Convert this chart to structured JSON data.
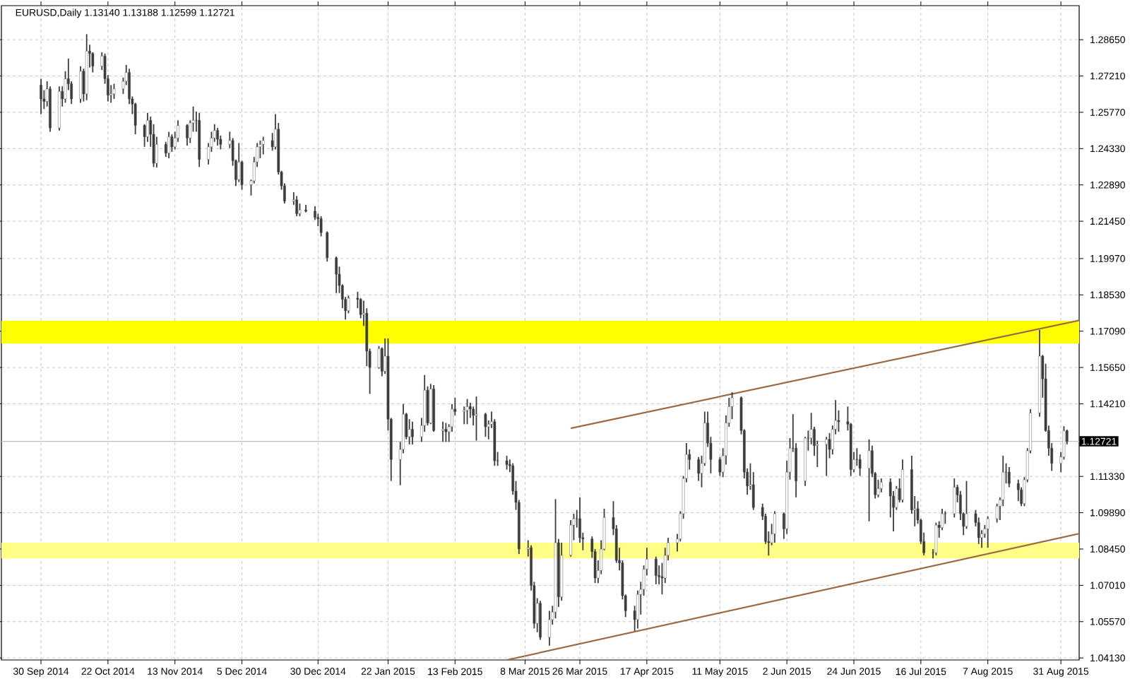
{
  "chart_data": {
    "type": "candlestick",
    "title": "EURUSD,Daily  1.13140 1.13188 1.12599 1.12721",
    "color": "#3c3c3c",
    "x": [
      "2014-09-30",
      "2014-10-01",
      "2014-10-02",
      "2014-10-03",
      "2014-10-06",
      "2014-10-07",
      "2014-10-08",
      "2014-10-09",
      "2014-10-10",
      "2014-10-13",
      "2014-10-14",
      "2014-10-15",
      "2014-10-16",
      "2014-10-17",
      "2014-10-20",
      "2014-10-21",
      "2014-10-22",
      "2014-10-23",
      "2014-10-24",
      "2014-10-27",
      "2014-10-28",
      "2014-10-29",
      "2014-10-30",
      "2014-10-31",
      "2014-11-03",
      "2014-11-04",
      "2014-11-05",
      "2014-11-06",
      "2014-11-07",
      "2014-11-10",
      "2014-11-11",
      "2014-11-12",
      "2014-11-13",
      "2014-11-14",
      "2014-11-17",
      "2014-11-18",
      "2014-11-19",
      "2014-11-20",
      "2014-11-21",
      "2014-11-24",
      "2014-11-25",
      "2014-11-26",
      "2014-11-27",
      "2014-11-28",
      "2014-12-01",
      "2014-12-02",
      "2014-12-03",
      "2014-12-04",
      "2014-12-05",
      "2014-12-08",
      "2014-12-09",
      "2014-12-10",
      "2014-12-11",
      "2014-12-12",
      "2014-12-15",
      "2014-12-16",
      "2014-12-17",
      "2014-12-18",
      "2014-12-19",
      "2014-12-22",
      "2014-12-23",
      "2014-12-24",
      "2014-12-26",
      "2014-12-29",
      "2014-12-30",
      "2014-12-31",
      "2015-01-02",
      "2015-01-05",
      "2015-01-06",
      "2015-01-07",
      "2015-01-08",
      "2015-01-09",
      "2015-01-12",
      "2015-01-13",
      "2015-01-14",
      "2015-01-15",
      "2015-01-16",
      "2015-01-19",
      "2015-01-20",
      "2015-01-21",
      "2015-01-22",
      "2015-01-23",
      "2015-01-26",
      "2015-01-27",
      "2015-01-28",
      "2015-01-29",
      "2015-01-30",
      "2015-02-02",
      "2015-02-03",
      "2015-02-04",
      "2015-02-05",
      "2015-02-06",
      "2015-02-09",
      "2015-02-10",
      "2015-02-11",
      "2015-02-12",
      "2015-02-13",
      "2015-02-16",
      "2015-02-17",
      "2015-02-18",
      "2015-02-19",
      "2015-02-20",
      "2015-02-23",
      "2015-02-24",
      "2015-02-25",
      "2015-02-26",
      "2015-02-27",
      "2015-03-02",
      "2015-03-03",
      "2015-03-04",
      "2015-03-05",
      "2015-03-06",
      "2015-03-09",
      "2015-03-10",
      "2015-03-11",
      "2015-03-12",
      "2015-03-13",
      "2015-03-16",
      "2015-03-17",
      "2015-03-18",
      "2015-03-19",
      "2015-03-20",
      "2015-03-23",
      "2015-03-24",
      "2015-03-25",
      "2015-03-26",
      "2015-03-27",
      "2015-03-30",
      "2015-03-31",
      "2015-04-01",
      "2015-04-02",
      "2015-04-03",
      "2015-04-06",
      "2015-04-07",
      "2015-04-08",
      "2015-04-09",
      "2015-04-10",
      "2015-04-13",
      "2015-04-14",
      "2015-04-15",
      "2015-04-16",
      "2015-04-17",
      "2015-04-20",
      "2015-04-21",
      "2015-04-22",
      "2015-04-23",
      "2015-04-24",
      "2015-04-27",
      "2015-04-28",
      "2015-04-29",
      "2015-04-30",
      "2015-05-01",
      "2015-05-04",
      "2015-05-05",
      "2015-05-06",
      "2015-05-07",
      "2015-05-08",
      "2015-05-11",
      "2015-05-12",
      "2015-05-13",
      "2015-05-14",
      "2015-05-15",
      "2015-05-18",
      "2015-05-19",
      "2015-05-20",
      "2015-05-21",
      "2015-05-22",
      "2015-05-25",
      "2015-05-26",
      "2015-05-27",
      "2015-05-28",
      "2015-05-29",
      "2015-06-01",
      "2015-06-02",
      "2015-06-03",
      "2015-06-04",
      "2015-06-05",
      "2015-06-08",
      "2015-06-09",
      "2015-06-10",
      "2015-06-11",
      "2015-06-12",
      "2015-06-15",
      "2015-06-16",
      "2015-06-17",
      "2015-06-18",
      "2015-06-19",
      "2015-06-22",
      "2015-06-23",
      "2015-06-24",
      "2015-06-25",
      "2015-06-26",
      "2015-06-29",
      "2015-06-30",
      "2015-07-01",
      "2015-07-02",
      "2015-07-03",
      "2015-07-06",
      "2015-07-07",
      "2015-07-08",
      "2015-07-09",
      "2015-07-10",
      "2015-07-13",
      "2015-07-14",
      "2015-07-15",
      "2015-07-16",
      "2015-07-17",
      "2015-07-20",
      "2015-07-21",
      "2015-07-22",
      "2015-07-23",
      "2015-07-24",
      "2015-07-27",
      "2015-07-28",
      "2015-07-29",
      "2015-07-30",
      "2015-07-31",
      "2015-08-03",
      "2015-08-04",
      "2015-08-05",
      "2015-08-06",
      "2015-08-07",
      "2015-08-10",
      "2015-08-11",
      "2015-08-12",
      "2015-08-13",
      "2015-08-14",
      "2015-08-17",
      "2015-08-18",
      "2015-08-19",
      "2015-08-20",
      "2015-08-21",
      "2015-08-24",
      "2015-08-25",
      "2015-08-26",
      "2015-08-27",
      "2015-08-28",
      "2015-08-31",
      "2015-09-01",
      "2015-09-02"
    ],
    "ohlc": [
      [
        1.2685,
        1.271,
        1.257,
        1.263
      ],
      [
        1.263,
        1.2665,
        1.259,
        1.262
      ],
      [
        1.262,
        1.27,
        1.26,
        1.267
      ],
      [
        1.267,
        1.268,
        1.25,
        1.2515
      ],
      [
        1.2515,
        1.268,
        1.2505,
        1.266
      ],
      [
        1.266,
        1.268,
        1.26,
        1.263
      ],
      [
        1.263,
        1.274,
        1.2615,
        1.271
      ],
      [
        1.271,
        1.279,
        1.2665,
        1.269
      ],
      [
        1.269,
        1.27,
        1.261,
        1.263
      ],
      [
        1.263,
        1.276,
        1.2615,
        1.274
      ],
      [
        1.274,
        1.275,
        1.262,
        1.265
      ],
      [
        1.265,
        1.2887,
        1.2625,
        1.282
      ],
      [
        1.282,
        1.2845,
        1.2755,
        1.281
      ],
      [
        1.281,
        1.2815,
        1.2735,
        1.276
      ],
      [
        1.276,
        1.2815,
        1.2745,
        1.28
      ],
      [
        1.28,
        1.281,
        1.269,
        1.271
      ],
      [
        1.271,
        1.2725,
        1.262,
        1.2645
      ],
      [
        1.2645,
        1.2685,
        1.2615,
        1.265
      ],
      [
        1.265,
        1.269,
        1.263,
        1.267
      ],
      [
        1.267,
        1.2715,
        1.265,
        1.27
      ],
      [
        1.27,
        1.2765,
        1.2685,
        1.2735
      ],
      [
        1.2735,
        1.275,
        1.261,
        1.263
      ],
      [
        1.263,
        1.264,
        1.257,
        1.261
      ],
      [
        1.261,
        1.2615,
        1.249,
        1.2525
      ],
      [
        1.2525,
        1.253,
        1.244,
        1.248
      ],
      [
        1.248,
        1.2575,
        1.246,
        1.2545
      ],
      [
        1.2545,
        1.256,
        1.244,
        1.249
      ],
      [
        1.249,
        1.253,
        1.236,
        1.2375
      ],
      [
        1.2375,
        1.248,
        1.2358,
        1.245
      ],
      [
        1.245,
        1.246,
        1.24,
        1.2415
      ],
      [
        1.2415,
        1.25,
        1.2395,
        1.248
      ],
      [
        1.248,
        1.249,
        1.242,
        1.244
      ],
      [
        1.244,
        1.25,
        1.243,
        1.2475
      ],
      [
        1.2475,
        1.2545,
        1.246,
        1.2525
      ],
      [
        1.2525,
        1.253,
        1.2445,
        1.2475
      ],
      [
        1.2475,
        1.2545,
        1.2455,
        1.2535
      ],
      [
        1.2535,
        1.26,
        1.25,
        1.2545
      ],
      [
        1.2545,
        1.258,
        1.25,
        1.2545
      ],
      [
        1.2545,
        1.2575,
        1.236,
        1.239
      ],
      [
        1.239,
        1.2455,
        1.237,
        1.244
      ],
      [
        1.244,
        1.25,
        1.242,
        1.2475
      ],
      [
        1.2475,
        1.253,
        1.246,
        1.2505
      ],
      [
        1.2505,
        1.2515,
        1.2445,
        1.247
      ],
      [
        1.247,
        1.2485,
        1.243,
        1.245
      ],
      [
        1.245,
        1.25,
        1.2435,
        1.2465
      ],
      [
        1.2465,
        1.2475,
        1.2365,
        1.2385
      ],
      [
        1.2385,
        1.239,
        1.2285,
        1.231
      ],
      [
        1.231,
        1.2455,
        1.23,
        1.238
      ],
      [
        1.238,
        1.2385,
        1.227,
        1.229
      ],
      [
        1.229,
        1.231,
        1.2247,
        1.2305
      ],
      [
        1.2305,
        1.24,
        1.2295,
        1.238
      ],
      [
        1.238,
        1.2455,
        1.236,
        1.244
      ],
      [
        1.244,
        1.2465,
        1.2395,
        1.245
      ],
      [
        1.245,
        1.248,
        1.241,
        1.2465
      ],
      [
        1.2465,
        1.2495,
        1.2425,
        1.244
      ],
      [
        1.244,
        1.257,
        1.243,
        1.251
      ],
      [
        1.251,
        1.2535,
        1.233,
        1.234
      ],
      [
        1.234,
        1.2345,
        1.227,
        1.2285
      ],
      [
        1.2285,
        1.2295,
        1.2215,
        1.2225
      ],
      [
        1.2225,
        1.226,
        1.221,
        1.223
      ],
      [
        1.223,
        1.2245,
        1.2165,
        1.2175
      ],
      [
        1.2175,
        1.2215,
        1.2165,
        1.219
      ],
      [
        1.219,
        1.221,
        1.218,
        1.2185
      ],
      [
        1.2185,
        1.2205,
        1.215,
        1.216
      ],
      [
        1.216,
        1.2175,
        1.2125,
        1.2155
      ],
      [
        1.2155,
        1.2165,
        1.2085,
        1.21
      ],
      [
        1.21,
        1.2105,
        1.1985,
        1.2
      ],
      [
        1.2,
        1.2005,
        1.186,
        1.1935
      ],
      [
        1.1935,
        1.1965,
        1.186,
        1.189
      ],
      [
        1.189,
        1.1895,
        1.18,
        1.1835
      ],
      [
        1.1835,
        1.1845,
        1.1755,
        1.179
      ],
      [
        1.179,
        1.185,
        1.178,
        1.184
      ],
      [
        1.184,
        1.1865,
        1.18,
        1.1835
      ],
      [
        1.1835,
        1.184,
        1.176,
        1.1775
      ],
      [
        1.1775,
        1.183,
        1.173,
        1.178
      ],
      [
        1.178,
        1.18,
        1.157,
        1.163
      ],
      [
        1.163,
        1.164,
        1.146,
        1.1565
      ],
      [
        1.1565,
        1.165,
        1.156,
        1.164
      ],
      [
        1.164,
        1.1645,
        1.153,
        1.155
      ],
      [
        1.155,
        1.168,
        1.154,
        1.161
      ],
      [
        1.161,
        1.168,
        1.1315,
        1.136
      ],
      [
        1.136,
        1.1365,
        1.1115,
        1.12
      ],
      [
        1.12,
        1.127,
        1.1098,
        1.124
      ],
      [
        1.124,
        1.142,
        1.1225,
        1.138
      ],
      [
        1.138,
        1.1385,
        1.128,
        1.129
      ],
      [
        1.129,
        1.136,
        1.126,
        1.132
      ],
      [
        1.132,
        1.135,
        1.126,
        1.129
      ],
      [
        1.129,
        1.1365,
        1.127,
        1.1335
      ],
      [
        1.1335,
        1.1535,
        1.131,
        1.1475
      ],
      [
        1.1475,
        1.149,
        1.1335,
        1.1345
      ],
      [
        1.1345,
        1.15,
        1.134,
        1.148
      ],
      [
        1.148,
        1.1495,
        1.131,
        1.1315
      ],
      [
        1.1315,
        1.135,
        1.127,
        1.132
      ],
      [
        1.132,
        1.1345,
        1.127,
        1.131
      ],
      [
        1.131,
        1.134,
        1.127,
        1.133
      ],
      [
        1.133,
        1.142,
        1.131,
        1.14
      ],
      [
        1.14,
        1.1445,
        1.1375,
        1.139
      ],
      [
        1.139,
        1.141,
        1.134,
        1.1395
      ],
      [
        1.1395,
        1.144,
        1.134,
        1.141
      ],
      [
        1.141,
        1.1425,
        1.1365,
        1.14
      ],
      [
        1.14,
        1.141,
        1.1335,
        1.1375
      ],
      [
        1.1375,
        1.145,
        1.1275,
        1.138
      ],
      [
        1.138,
        1.1385,
        1.129,
        1.133
      ],
      [
        1.133,
        1.1355,
        1.128,
        1.134
      ],
      [
        1.134,
        1.139,
        1.1325,
        1.135
      ],
      [
        1.135,
        1.136,
        1.1175,
        1.1195
      ],
      [
        1.1195,
        1.123,
        1.1175,
        1.1195
      ],
      [
        1.1195,
        1.1215,
        1.116,
        1.118
      ],
      [
        1.118,
        1.12,
        1.115,
        1.1175
      ],
      [
        1.1175,
        1.1185,
        1.106,
        1.1075
      ],
      [
        1.1075,
        1.1115,
        1.1,
        1.103
      ],
      [
        1.103,
        1.104,
        1.0825,
        1.0845
      ],
      [
        1.0845,
        1.088,
        1.0815,
        1.085
      ],
      [
        1.085,
        1.086,
        1.068,
        1.07
      ],
      [
        1.07,
        1.0715,
        1.053,
        1.055
      ],
      [
        1.055,
        1.065,
        1.0515,
        1.063
      ],
      [
        1.063,
        1.064,
        1.0485,
        1.0495
      ],
      [
        1.0495,
        1.06,
        1.0462,
        1.0565
      ],
      [
        1.0565,
        1.062,
        1.0545,
        1.0595
      ],
      [
        1.0595,
        1.1043,
        1.057,
        1.087
      ],
      [
        1.087,
        1.0885,
        1.0615,
        1.0655
      ],
      [
        1.0655,
        1.087,
        1.064,
        1.082
      ],
      [
        1.082,
        1.096,
        1.0815,
        1.094
      ],
      [
        1.094,
        1.0985,
        1.088,
        1.0965
      ],
      [
        1.0965,
        1.1,
        1.093,
        1.0965
      ],
      [
        1.0965,
        1.105,
        1.087,
        1.089
      ],
      [
        1.089,
        1.091,
        1.084,
        1.0885
      ],
      [
        1.0885,
        1.0895,
        1.081,
        1.0835
      ],
      [
        1.0835,
        1.0845,
        1.071,
        1.073
      ],
      [
        1.073,
        1.08,
        1.071,
        1.076
      ],
      [
        1.076,
        1.088,
        1.0745,
        1.0845
      ],
      [
        1.0845,
        1.1005,
        1.084,
        1.097
      ],
      [
        1.097,
        1.1035,
        1.09,
        1.0925
      ],
      [
        1.0925,
        1.094,
        1.079,
        1.08
      ],
      [
        1.08,
        1.085,
        1.076,
        1.079
      ],
      [
        1.079,
        1.08,
        1.0645,
        1.066
      ],
      [
        1.066,
        1.0665,
        1.0575,
        1.06
      ],
      [
        1.06,
        1.062,
        1.052,
        1.0565
      ],
      [
        1.0565,
        1.068,
        1.053,
        1.0665
      ],
      [
        1.0665,
        1.0715,
        1.0585,
        1.0685
      ],
      [
        1.0685,
        1.078,
        1.066,
        1.0765
      ],
      [
        1.0765,
        1.085,
        1.074,
        1.0805
      ],
      [
        1.0805,
        1.0815,
        1.0705,
        1.074
      ],
      [
        1.074,
        1.078,
        1.0705,
        1.0735
      ],
      [
        1.0735,
        1.079,
        1.0665,
        1.073
      ],
      [
        1.073,
        1.085,
        1.071,
        1.082
      ],
      [
        1.082,
        1.089,
        1.08,
        1.087
      ],
      [
        1.087,
        1.0905,
        1.0835,
        1.0885
      ],
      [
        1.0885,
        1.0995,
        1.0875,
        1.0985
      ],
      [
        1.0985,
        1.1135,
        1.0965,
        1.1125
      ],
      [
        1.1125,
        1.1265,
        1.111,
        1.122
      ],
      [
        1.122,
        1.124,
        1.116,
        1.12
      ],
      [
        1.12,
        1.121,
        1.1115,
        1.1145
      ],
      [
        1.1145,
        1.1215,
        1.109,
        1.1185
      ],
      [
        1.1185,
        1.139,
        1.1175,
        1.1345
      ],
      [
        1.1345,
        1.139,
        1.125,
        1.1265
      ],
      [
        1.1265,
        1.129,
        1.1145,
        1.12
      ],
      [
        1.12,
        1.121,
        1.1135,
        1.115
      ],
      [
        1.115,
        1.1245,
        1.113,
        1.1215
      ],
      [
        1.1215,
        1.1375,
        1.118,
        1.1345
      ],
      [
        1.1345,
        1.1445,
        1.133,
        1.141
      ],
      [
        1.141,
        1.1467,
        1.136,
        1.1445
      ],
      [
        1.1445,
        1.145,
        1.13,
        1.1315
      ],
      [
        1.1315,
        1.132,
        1.1125,
        1.115
      ],
      [
        1.115,
        1.1165,
        1.106,
        1.1095
      ],
      [
        1.1095,
        1.1185,
        1.108,
        1.11
      ],
      [
        1.11,
        1.115,
        1.1,
        1.101
      ],
      [
        1.101,
        1.1025,
        1.096,
        1.0975
      ],
      [
        1.0975,
        1.0985,
        1.0865,
        1.0875
      ],
      [
        1.0875,
        1.0915,
        1.0819,
        1.087
      ],
      [
        1.087,
        1.0945,
        1.086,
        1.0905
      ],
      [
        1.0905,
        1.0995,
        1.087,
        1.0985
      ],
      [
        1.0985,
        1.099,
        1.0885,
        1.0925
      ],
      [
        1.0925,
        1.1195,
        1.0905,
        1.115
      ],
      [
        1.115,
        1.1285,
        1.112,
        1.1245
      ],
      [
        1.1245,
        1.138,
        1.123,
        1.1245
      ],
      [
        1.1245,
        1.1265,
        1.105,
        1.1115
      ],
      [
        1.1115,
        1.129,
        1.1095,
        1.1285
      ],
      [
        1.1285,
        1.1315,
        1.1235,
        1.1285
      ],
      [
        1.1285,
        1.1385,
        1.126,
        1.132
      ],
      [
        1.132,
        1.133,
        1.1215,
        1.1255
      ],
      [
        1.1255,
        1.1275,
        1.117,
        1.126
      ],
      [
        1.126,
        1.129,
        1.1135,
        1.128
      ],
      [
        1.128,
        1.1305,
        1.1205,
        1.124
      ],
      [
        1.124,
        1.1335,
        1.122,
        1.132
      ],
      [
        1.132,
        1.1436,
        1.13,
        1.1355
      ],
      [
        1.1355,
        1.1395,
        1.131,
        1.135
      ],
      [
        1.135,
        1.141,
        1.1315,
        1.134
      ],
      [
        1.134,
        1.1345,
        1.1135,
        1.116
      ],
      [
        1.116,
        1.123,
        1.115,
        1.12
      ],
      [
        1.12,
        1.1245,
        1.1175,
        1.12
      ],
      [
        1.12,
        1.122,
        1.1135,
        1.1165
      ],
      [
        1.1165,
        1.128,
        1.0955,
        1.1235
      ],
      [
        1.1235,
        1.1255,
        1.113,
        1.1145
      ],
      [
        1.1145,
        1.115,
        1.1045,
        1.106
      ],
      [
        1.106,
        1.112,
        1.105,
        1.1085
      ],
      [
        1.1085,
        1.1125,
        1.107,
        1.111
      ],
      [
        1.111,
        1.1125,
        1.097,
        1.1055
      ],
      [
        1.1055,
        1.1075,
        1.0915,
        1.101
      ],
      [
        1.101,
        1.1095,
        1.1,
        1.1085
      ],
      [
        1.1085,
        1.1125,
        1.103,
        1.104
      ],
      [
        1.104,
        1.12,
        1.103,
        1.116
      ],
      [
        1.116,
        1.1215,
        1.0985,
        1.1
      ],
      [
        1.1,
        1.1055,
        1.0935,
        1.1005
      ],
      [
        1.1005,
        1.1035,
        1.0945,
        1.096
      ],
      [
        1.096,
        1.0965,
        1.0865,
        1.0875
      ],
      [
        1.0875,
        1.091,
        1.082,
        1.083
      ],
      [
        1.083,
        1.0845,
        1.0808,
        1.083
      ],
      [
        1.083,
        1.095,
        1.082,
        1.094
      ],
      [
        1.094,
        1.0955,
        1.089,
        1.093
      ],
      [
        1.093,
        1.1005,
        1.092,
        1.0985
      ],
      [
        1.0985,
        1.0995,
        1.0945,
        1.0985
      ],
      [
        1.0985,
        1.1125,
        1.097,
        1.109
      ],
      [
        1.109,
        1.11,
        1.103,
        1.106
      ],
      [
        1.106,
        1.1075,
        1.096,
        1.0985
      ],
      [
        1.0985,
        1.099,
        1.09,
        1.0935
      ],
      [
        1.0935,
        1.1115,
        1.0925,
        1.0985
      ],
      [
        1.0985,
        1.1,
        1.0935,
        1.095
      ],
      [
        1.095,
        1.097,
        1.0865,
        1.089
      ],
      [
        1.089,
        1.092,
        1.085,
        1.0905
      ],
      [
        1.0905,
        1.094,
        1.089,
        1.0925
      ],
      [
        1.0925,
        1.0975,
        1.085,
        1.0965
      ],
      [
        1.0965,
        1.1025,
        1.095,
        1.1015
      ],
      [
        1.1015,
        1.105,
        1.096,
        1.104
      ],
      [
        1.104,
        1.1215,
        1.1015,
        1.115
      ],
      [
        1.115,
        1.1185,
        1.1105,
        1.115
      ],
      [
        1.115,
        1.117,
        1.109,
        1.1105
      ],
      [
        1.1105,
        1.112,
        1.1035,
        1.108
      ],
      [
        1.108,
        1.109,
        1.1015,
        1.1025
      ],
      [
        1.1025,
        1.113,
        1.1015,
        1.112
      ],
      [
        1.112,
        1.1245,
        1.111,
        1.1235
      ],
      [
        1.1235,
        1.14,
        1.1225,
        1.1385
      ],
      [
        1.1385,
        1.1714,
        1.137,
        1.161
      ],
      [
        1.161,
        1.1615,
        1.1445,
        1.152
      ],
      [
        1.152,
        1.158,
        1.131,
        1.1315
      ],
      [
        1.1315,
        1.1335,
        1.1215,
        1.1245
      ],
      [
        1.1245,
        1.1265,
        1.1155,
        1.1185
      ],
      [
        1.1185,
        1.123,
        1.115,
        1.121
      ],
      [
        1.121,
        1.1332,
        1.12,
        1.1314
      ],
      [
        1.1314,
        1.13188,
        1.12599,
        1.12721
      ]
    ],
    "series": [
      {
        "type": "line",
        "color": "#9b6a45",
        "x": [
          "2015-03-23",
          "2015-09-06"
        ],
        "values": [
          1.1324,
          1.1752
        ]
      },
      {
        "type": "line",
        "color": "#9b6a45",
        "x": [
          "2015-03-02",
          "2015-09-06"
        ],
        "values": [
          1.0405,
          1.0906
        ]
      }
    ],
    "bands": [
      {
        "axis": "y",
        "from": 1.166,
        "to": 1.175,
        "color": "#ffff00"
      },
      {
        "axis": "y",
        "from": 1.0808,
        "to": 1.087,
        "color": "#ffff88"
      }
    ],
    "ref_lines": [
      {
        "axis": "y",
        "value": 1.12721,
        "label": "1.12721",
        "color": "#c0c0c0"
      }
    ],
    "xlim": [
      "2014-09-17",
      "2015-09-06"
    ],
    "ylim": [
      1.0405,
      1.3
    ],
    "xticks": [
      {
        "value": "2014-09-30",
        "label": "30 Sep 2014"
      },
      {
        "value": "2014-10-22",
        "label": "22 Oct 2014"
      },
      {
        "value": "2014-11-13",
        "label": "13 Nov 2014"
      },
      {
        "value": "2014-12-05",
        "label": "5 Dec 2014"
      },
      {
        "value": "2014-12-30",
        "label": "30 Dec 2014"
      },
      {
        "value": "2015-01-22",
        "label": "22 Jan 2015"
      },
      {
        "value": "2015-02-13",
        "label": "13 Feb 2015"
      },
      {
        "value": "2015-03-08",
        "label": "8 Mar 2015"
      },
      {
        "value": "2015-03-26",
        "label": "26 Mar 2015"
      },
      {
        "value": "2015-04-17",
        "label": "17 Apr 2015"
      },
      {
        "value": "2015-05-11",
        "label": "11 May 2015"
      },
      {
        "value": "2015-06-02",
        "label": "2 Jun 2015"
      },
      {
        "value": "2015-06-24",
        "label": "24 Jun 2015"
      },
      {
        "value": "2015-07-16",
        "label": "16 Jul 2015"
      },
      {
        "value": "2015-08-07",
        "label": "7 Aug 2015"
      },
      {
        "value": "2015-08-31",
        "label": "31 Aug 2015"
      }
    ],
    "yticks": [
      {
        "value": 1.2865,
        "label": "1.28650"
      },
      {
        "value": 1.2721,
        "label": "1.27210"
      },
      {
        "value": 1.2577,
        "label": "1.25770"
      },
      {
        "value": 1.2433,
        "label": "1.24330"
      },
      {
        "value": 1.2289,
        "label": "1.22890"
      },
      {
        "value": 1.2145,
        "label": "1.21450"
      },
      {
        "value": 1.1997,
        "label": "1.19970"
      },
      {
        "value": 1.1853,
        "label": "1.18530"
      },
      {
        "value": 1.1709,
        "label": "1.17090"
      },
      {
        "value": 1.1565,
        "label": "1.15650"
      },
      {
        "value": 1.1421,
        "label": "1.14210"
      },
      {
        "value": 1.1133,
        "label": "1.11330"
      },
      {
        "value": 1.0989,
        "label": "1.09890"
      },
      {
        "value": 1.0845,
        "label": "1.08450"
      },
      {
        "value": 1.0701,
        "label": "1.07010"
      },
      {
        "value": 1.0557,
        "label": "1.05570"
      },
      {
        "value": 1.0413,
        "label": "1.04130"
      }
    ],
    "grid": true
  }
}
